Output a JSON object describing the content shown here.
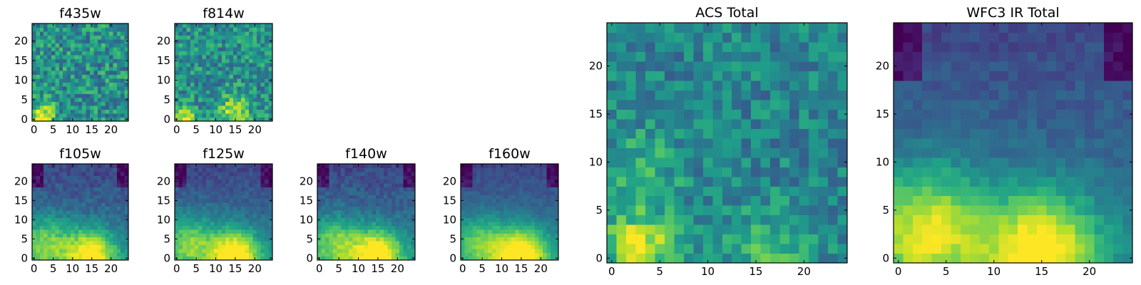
{
  "chart_data": [
    {
      "type": "heatmap",
      "title": "f435w",
      "colormap": "viridis",
      "grid": false,
      "nx": 25,
      "ny": 25,
      "xticks": [
        0,
        5,
        10,
        15,
        20
      ],
      "yticks": [
        0,
        5,
        10,
        15,
        20
      ],
      "xlim": [
        -0.5,
        24.5
      ],
      "ylim": [
        -0.5,
        24.5
      ],
      "noise": 0.22,
      "floor": 0.5,
      "hotspots": [
        {
          "x": 2,
          "y": 1,
          "amp": 0.5,
          "sigma": 2.2
        }
      ]
    },
    {
      "type": "heatmap",
      "title": "f814w",
      "colormap": "viridis",
      "grid": false,
      "nx": 25,
      "ny": 25,
      "xticks": [
        0,
        5,
        10,
        15,
        20
      ],
      "yticks": [
        0,
        5,
        10,
        15,
        20
      ],
      "xlim": [
        -0.5,
        24.5
      ],
      "ylim": [
        -0.5,
        24.5
      ],
      "noise": 0.2,
      "floor": 0.5,
      "hotspots": [
        {
          "x": 2,
          "y": 0,
          "amp": 0.45,
          "sigma": 2.0
        },
        {
          "x": 15,
          "y": 2,
          "amp": 0.35,
          "sigma": 3.0
        }
      ]
    },
    {
      "type": "heatmap",
      "title": "f105w",
      "colormap": "viridis",
      "grid": false,
      "nx": 25,
      "ny": 25,
      "xticks": [
        0,
        5,
        10,
        15,
        20
      ],
      "yticks": [
        0,
        5,
        10,
        15,
        20
      ],
      "xlim": [
        -0.5,
        24.5
      ],
      "ylim": [
        -0.5,
        24.5
      ],
      "noise": 0.08,
      "floor": 0.3,
      "hotspots": [
        {
          "x": 15,
          "y": 1,
          "amp": 0.65,
          "sigma": 4.5
        },
        {
          "x": 3,
          "y": 4,
          "amp": 0.4,
          "sigma": 5.0
        }
      ]
    },
    {
      "type": "heatmap",
      "title": "f125w",
      "colormap": "viridis",
      "grid": false,
      "nx": 25,
      "ny": 25,
      "xticks": [
        0,
        5,
        10,
        15,
        20
      ],
      "yticks": [
        0,
        5,
        10,
        15,
        20
      ],
      "xlim": [
        -0.5,
        24.5
      ],
      "ylim": [
        -0.5,
        24.5
      ],
      "noise": 0.07,
      "floor": 0.3,
      "hotspots": [
        {
          "x": 15,
          "y": 1,
          "amp": 0.7,
          "sigma": 4.5
        },
        {
          "x": 3,
          "y": 4,
          "amp": 0.4,
          "sigma": 5.0
        }
      ]
    },
    {
      "type": "heatmap",
      "title": "f140w",
      "colormap": "viridis",
      "grid": false,
      "nx": 25,
      "ny": 25,
      "xticks": [
        0,
        5,
        10,
        15,
        20
      ],
      "yticks": [
        0,
        5,
        10,
        15,
        20
      ],
      "xlim": [
        -0.5,
        24.5
      ],
      "ylim": [
        -0.5,
        24.5
      ],
      "noise": 0.08,
      "floor": 0.3,
      "hotspots": [
        {
          "x": 15,
          "y": 1,
          "amp": 0.7,
          "sigma": 4.5
        },
        {
          "x": 4,
          "y": 4,
          "amp": 0.4,
          "sigma": 5.0
        }
      ]
    },
    {
      "type": "heatmap",
      "title": "f160w",
      "colormap": "viridis",
      "grid": false,
      "nx": 25,
      "ny": 25,
      "xticks": [
        0,
        5,
        10,
        15,
        20
      ],
      "yticks": [
        0,
        5,
        10,
        15,
        20
      ],
      "xlim": [
        -0.5,
        24.5
      ],
      "ylim": [
        -0.5,
        24.5
      ],
      "noise": 0.05,
      "floor": 0.3,
      "hotspots": [
        {
          "x": 15,
          "y": 1,
          "amp": 0.7,
          "sigma": 5.0
        },
        {
          "x": 4,
          "y": 4,
          "amp": 0.35,
          "sigma": 5.0
        }
      ]
    },
    {
      "type": "heatmap",
      "title": "ACS Total",
      "colormap": "viridis",
      "grid": false,
      "nx": 25,
      "ny": 25,
      "xticks": [
        0,
        5,
        10,
        15,
        20
      ],
      "yticks": [
        0,
        5,
        10,
        15,
        20
      ],
      "xlim": [
        -0.5,
        24.5
      ],
      "ylim": [
        -0.5,
        24.5
      ],
      "noise": 0.16,
      "floor": 0.45,
      "hotspots": [
        {
          "x": 3,
          "y": 1,
          "amp": 0.5,
          "sigma": 2.5
        },
        {
          "x": 3,
          "y": 9,
          "amp": 0.2,
          "sigma": 3.0
        },
        {
          "x": 16,
          "y": 1,
          "amp": 0.25,
          "sigma": 3.0
        }
      ]
    },
    {
      "type": "heatmap",
      "title": "WFC3 IR Total",
      "colormap": "viridis",
      "grid": false,
      "nx": 25,
      "ny": 25,
      "xticks": [
        0,
        5,
        10,
        15,
        20
      ],
      "yticks": [
        0,
        5,
        10,
        15,
        20
      ],
      "xlim": [
        -0.5,
        24.5
      ],
      "ylim": [
        -0.5,
        24.5
      ],
      "noise": 0.06,
      "floor": 0.3,
      "hotspots": [
        {
          "x": 15,
          "y": 1,
          "amp": 0.65,
          "sigma": 4.0
        },
        {
          "x": 3,
          "y": 3,
          "amp": 0.55,
          "sigma": 4.5
        }
      ]
    }
  ]
}
